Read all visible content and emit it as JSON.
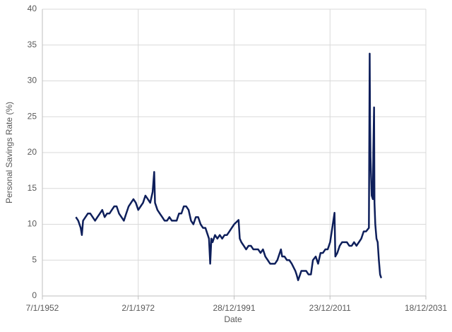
{
  "chart_data": {
    "type": "line",
    "x_label": "Date",
    "y_label": "Personal Savings Rate  (%)",
    "xlim": [
      "7/1/1952",
      "18/12/2031"
    ],
    "xticks": [
      "7/1/1952",
      "2/1/1972",
      "28/12/1991",
      "23/12/2011",
      "18/12/2031"
    ],
    "ylim": [
      0,
      40
    ],
    "yticks": [
      0,
      5,
      10,
      15,
      20,
      25,
      30,
      35,
      40
    ],
    "grid": true,
    "series": [
      {
        "name": "Personal Savings Rate",
        "color": "#0e1f5b",
        "x": [
          "1/1/1959",
          "1/7/1959",
          "1/1/1960",
          "1/4/1960",
          "1/7/1960",
          "1/1/1961",
          "1/7/1961",
          "1/1/1962",
          "1/7/1962",
          "1/1/1963",
          "1/7/1963",
          "1/1/1964",
          "1/7/1964",
          "1/1/1965",
          "1/7/1965",
          "1/1/1966",
          "1/7/1966",
          "1/1/1967",
          "1/7/1967",
          "1/1/1968",
          "1/7/1968",
          "1/1/1969",
          "1/7/1969",
          "1/1/1970",
          "1/7/1970",
          "1/1/1971",
          "1/7/1971",
          "1/1/1972",
          "1/7/1972",
          "1/1/1973",
          "1/7/1973",
          "1/1/1974",
          "1/7/1974",
          "1/1/1975",
          "1/5/1975",
          "1/7/1975",
          "1/1/1976",
          "1/7/1976",
          "1/1/1977",
          "1/7/1977",
          "1/1/1978",
          "1/7/1978",
          "1/1/1979",
          "1/7/1979",
          "1/1/1980",
          "1/7/1980",
          "1/1/1981",
          "1/7/1981",
          "1/1/1982",
          "1/7/1982",
          "1/1/1983",
          "1/7/1983",
          "1/1/1984",
          "1/7/1984",
          "1/1/1985",
          "1/7/1985",
          "1/1/1986",
          "1/10/1986",
          "1/1/1987",
          "1/4/1987",
          "1/7/1987",
          "1/1/1988",
          "1/7/1988",
          "1/1/1989",
          "1/7/1989",
          "1/1/1990",
          "1/7/1990",
          "1/1/1991",
          "1/7/1991",
          "1/1/1992",
          "1/12/1992",
          "1/3/1993",
          "1/7/1993",
          "1/1/1994",
          "1/7/1994",
          "1/1/1995",
          "1/7/1995",
          "1/1/1996",
          "1/7/1996",
          "1/1/1997",
          "1/7/1997",
          "1/1/1998",
          "1/7/1998",
          "1/1/1999",
          "1/7/1999",
          "1/1/2000",
          "1/7/2000",
          "1/1/2001",
          "1/10/2001",
          "1/1/2002",
          "1/7/2002",
          "1/1/2003",
          "1/7/2003",
          "1/1/2004",
          "1/10/2004",
          "1/1/2005",
          "1/5/2005",
          "1/10/2005",
          "1/1/2006",
          "1/7/2006",
          "1/1/2007",
          "1/7/2007",
          "1/1/2008",
          "1/6/2008",
          "1/1/2009",
          "1/7/2009",
          "1/1/2010",
          "1/7/2010",
          "1/1/2011",
          "1/7/2011",
          "1/1/2012",
          "1/12/2012",
          "1/2/2013",
          "1/7/2013",
          "1/1/2014",
          "1/7/2014",
          "1/1/2015",
          "1/7/2015",
          "1/1/2016",
          "1/7/2016",
          "1/1/2017",
          "1/7/2017",
          "1/1/2018",
          "1/7/2018",
          "1/1/2019",
          "1/7/2019",
          "1/2/2020",
          "1/4/2020",
          "1/5/2020",
          "1/6/2020",
          "1/9/2020",
          "1/12/2020",
          "1/1/2021",
          "1/3/2021",
          "1/4/2021",
          "1/6/2021",
          "1/9/2021",
          "1/12/2021",
          "1/3/2022",
          "1/6/2022",
          "1/9/2022"
        ],
        "values": [
          11,
          10.5,
          9.5,
          8.5,
          10.5,
          11,
          11.5,
          11.5,
          11,
          10.5,
          11,
          11.5,
          12,
          11,
          11.5,
          11.5,
          12,
          12.5,
          12.5,
          11.5,
          11,
          10.5,
          11.5,
          12.5,
          13,
          13.5,
          13,
          12,
          12.5,
          13,
          14,
          13.5,
          13,
          14.5,
          17.3,
          13,
          12,
          11.5,
          11,
          10.5,
          10.5,
          11,
          10.5,
          10.5,
          10.5,
          11.5,
          11.5,
          12.5,
          12.5,
          12,
          10.5,
          10,
          11,
          11,
          10,
          9.5,
          9.5,
          8,
          4.5,
          8,
          7.5,
          8.5,
          8,
          8.5,
          8,
          8.5,
          8.5,
          9,
          9.5,
          10,
          10.6,
          8,
          7.5,
          7,
          6.5,
          7,
          7,
          6.5,
          6.5,
          6.5,
          6,
          6.5,
          5.5,
          5,
          4.5,
          4.5,
          4.5,
          5,
          6.5,
          5.5,
          5.5,
          5,
          5,
          4.5,
          3.5,
          3,
          2.2,
          3,
          3.5,
          3.5,
          3.5,
          3,
          3,
          5,
          5.5,
          4.5,
          6,
          6,
          6.5,
          6.5,
          7.5,
          11.6,
          5.5,
          6,
          7,
          7.5,
          7.5,
          7.5,
          7,
          7,
          7.5,
          7,
          7.5,
          8,
          9,
          9,
          9.5,
          33.8,
          24,
          19.5,
          14,
          13.5,
          20,
          26.3,
          13,
          10,
          8,
          7.5,
          5,
          3,
          2.5
        ]
      }
    ]
  }
}
